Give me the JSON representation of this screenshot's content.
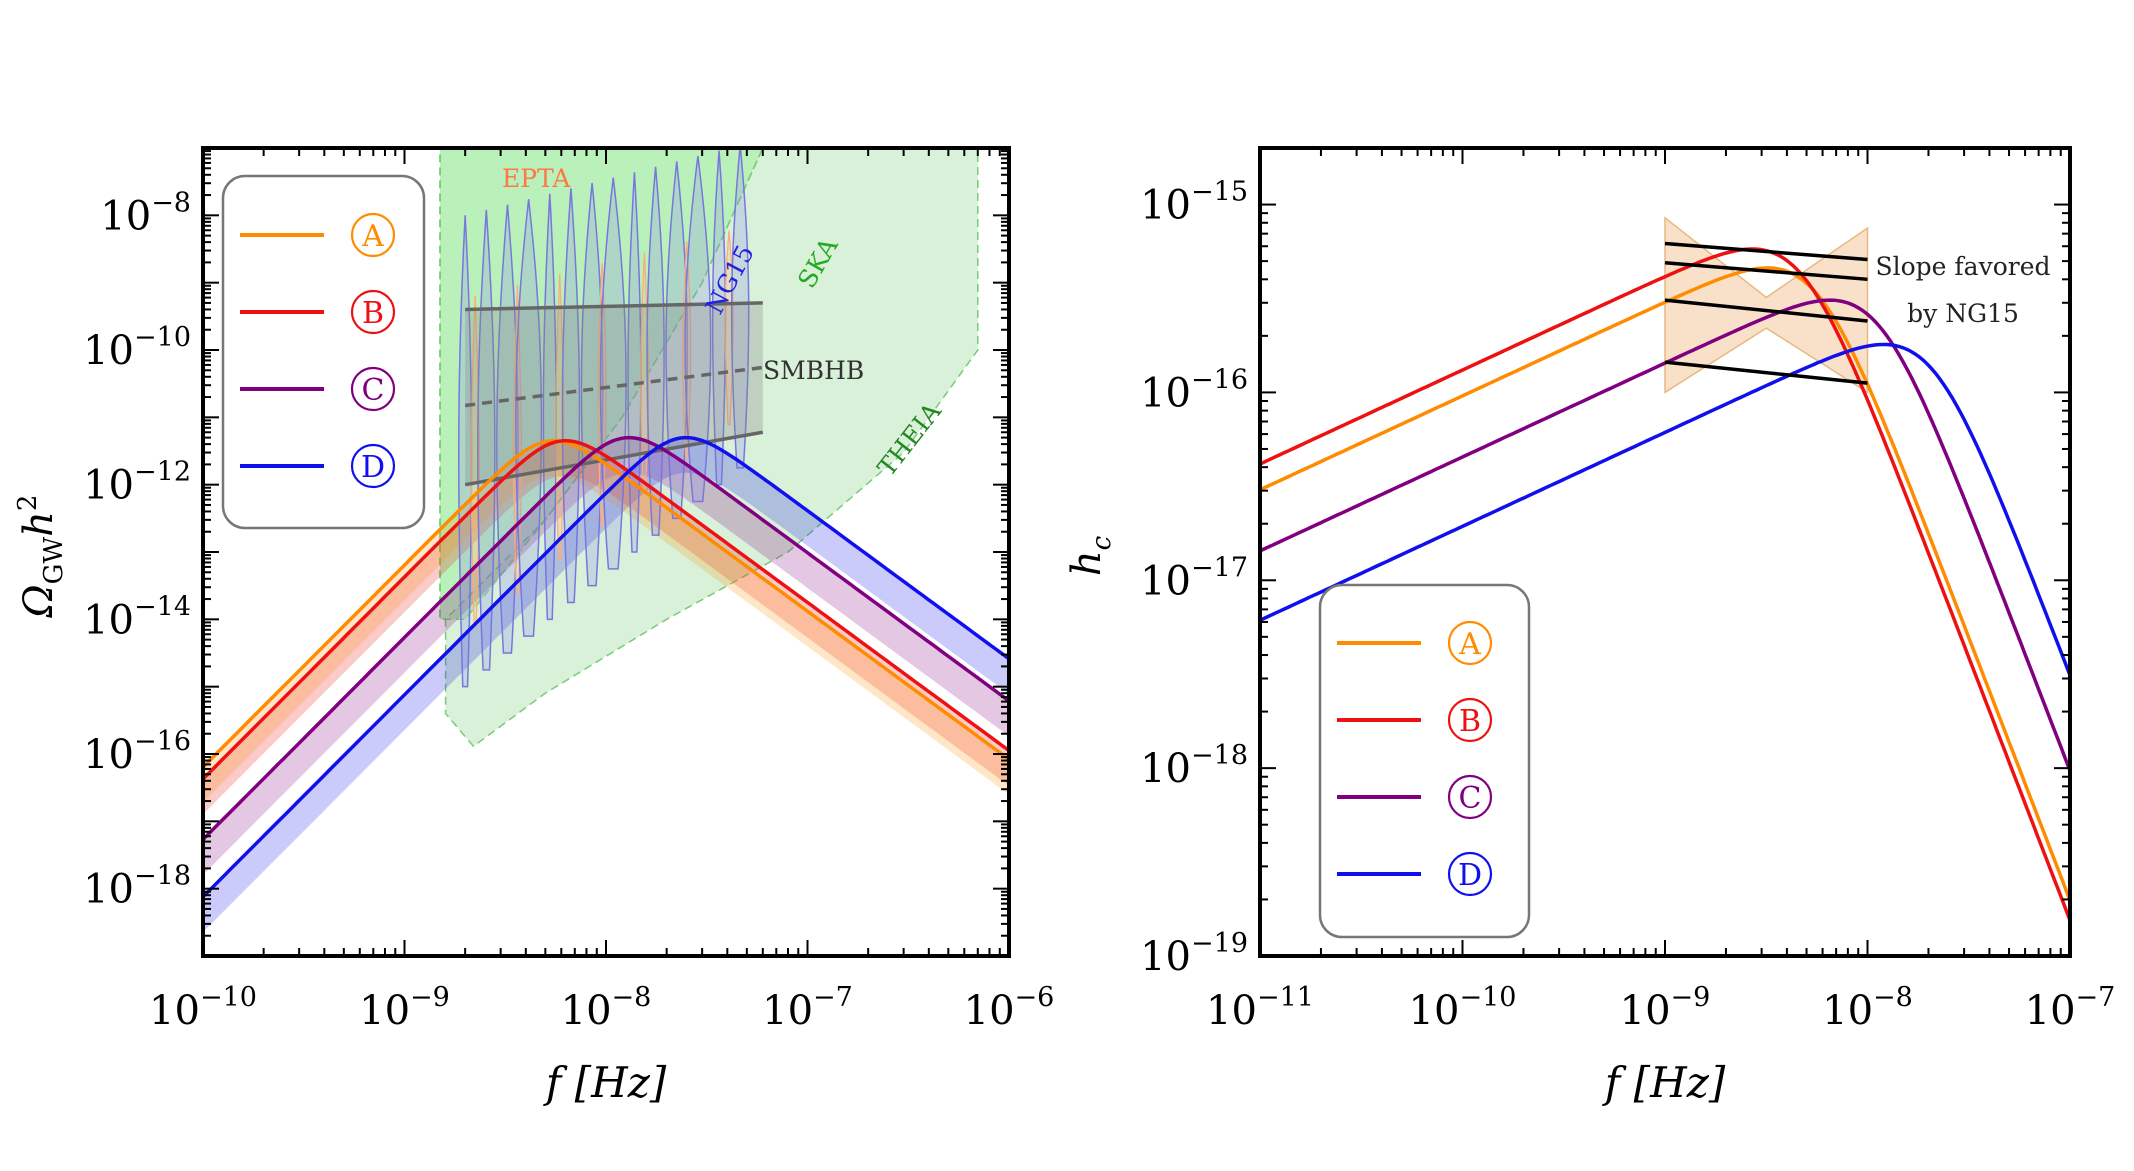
{
  "figure": {
    "panels": 2
  },
  "chart_data": [
    {
      "type": "line",
      "title": "",
      "xlabel": "f  [Hz]",
      "ylabel": "Ω_GW h²",
      "ylabel_parts": {
        "omega": "Ω",
        "sub": "GW",
        "h": "h",
        "sup": "2"
      },
      "xscale": "log",
      "yscale": "log",
      "xlim": [
        1e-10,
        1e-06
      ],
      "ylim": [
        1e-19,
        1e-07
      ],
      "grid": false,
      "x_ticks": [
        {
          "value": 1e-10,
          "base": "10",
          "exp": "−10"
        },
        {
          "value": 1e-09,
          "base": "10",
          "exp": "−9"
        },
        {
          "value": 1e-08,
          "base": "10",
          "exp": "−8"
        },
        {
          "value": 1e-07,
          "base": "10",
          "exp": "−7"
        },
        {
          "value": 1e-06,
          "base": "10",
          "exp": "−6"
        }
      ],
      "y_ticks": [
        {
          "value": 1e-18,
          "base": "10",
          "exp": "−18"
        },
        {
          "value": 1e-16,
          "base": "10",
          "exp": "−16"
        },
        {
          "value": 1e-14,
          "base": "10",
          "exp": "−14"
        },
        {
          "value": 1e-12,
          "base": "10",
          "exp": "−12"
        },
        {
          "value": 1e-10,
          "base": "10",
          "exp": "−10"
        },
        {
          "value": 1e-08,
          "base": "10",
          "exp": "−8"
        }
      ],
      "legend": {
        "placement": "top-left",
        "entries": [
          {
            "label": "A",
            "color": "#ff8c00"
          },
          {
            "label": "B",
            "color": "#ee1111"
          },
          {
            "label": "C",
            "color": "#800080"
          },
          {
            "label": "D",
            "color": "#1010ee"
          }
        ]
      },
      "series": [
        {
          "name": "A",
          "color": "#ff8c00",
          "peak_f": 5.5e-09,
          "peak_y": 4.5e-12,
          "low_slope": 3,
          "high_slope": -2.2,
          "band_low_factor": 0.3,
          "band_high_factor": 1.0
        },
        {
          "name": "B",
          "color": "#ee1111",
          "peak_f": 6.3e-09,
          "peak_y": 4.5e-12,
          "low_slope": 3,
          "high_slope": -2.2,
          "band_low_factor": 0.3,
          "band_high_factor": 1.0
        },
        {
          "name": "C",
          "color": "#800080",
          "peak_f": 1.3e-08,
          "peak_y": 5e-12,
          "low_slope": 3,
          "high_slope": -2.2,
          "band_low_factor": 0.3,
          "band_high_factor": 1.0
        },
        {
          "name": "D",
          "color": "#1010ee",
          "peak_f": 2.5e-08,
          "peak_y": 5e-12,
          "low_slope": 3,
          "high_slope": -2.2,
          "band_low_factor": 0.3,
          "band_high_factor": 1.0
        }
      ],
      "sensitivity_regions": [
        {
          "label": "SKA",
          "color": "#22aa22",
          "fill": "#66dd66"
        },
        {
          "label": "THEIA",
          "color": "#228822",
          "fill": "#aaddaa"
        }
      ],
      "pta_labels": [
        {
          "label": "EPTA",
          "color": "#ff7744"
        },
        {
          "label": "NG15",
          "color": "#2222dd"
        }
      ],
      "smbhb": {
        "label": "SMBHB",
        "f_range": [
          2e-09,
          6e-08
        ],
        "upper": [
          4e-10,
          5e-10
        ],
        "median": [
          1.5e-11,
          5.5e-11
        ],
        "lower": [
          1e-12,
          6e-12
        ]
      }
    },
    {
      "type": "line",
      "title": "",
      "xlabel": "f  [Hz]",
      "ylabel": "h_c",
      "ylabel_parts": {
        "h": "h",
        "sub": "c"
      },
      "xscale": "log",
      "yscale": "log",
      "xlim": [
        1e-11,
        1e-07
      ],
      "ylim": [
        1e-19,
        2e-15
      ],
      "grid": false,
      "x_ticks": [
        {
          "value": 1e-11,
          "base": "10",
          "exp": "−11"
        },
        {
          "value": 1e-10,
          "base": "10",
          "exp": "−10"
        },
        {
          "value": 1e-09,
          "base": "10",
          "exp": "−9"
        },
        {
          "value": 1e-08,
          "base": "10",
          "exp": "−8"
        },
        {
          "value": 1e-07,
          "base": "10",
          "exp": "−7"
        }
      ],
      "y_ticks": [
        {
          "value": 1e-19,
          "base": "10",
          "exp": "−19"
        },
        {
          "value": 1e-18,
          "base": "10",
          "exp": "−18"
        },
        {
          "value": 1e-17,
          "base": "10",
          "exp": "−17"
        },
        {
          "value": 1e-16,
          "base": "10",
          "exp": "−16"
        },
        {
          "value": 1e-15,
          "base": "10",
          "exp": "−15"
        }
      ],
      "legend": {
        "placement": "bottom-left",
        "entries": [
          {
            "label": "A",
            "color": "#ff8c00"
          },
          {
            "label": "B",
            "color": "#ee1111"
          },
          {
            "label": "C",
            "color": "#800080"
          },
          {
            "label": "D",
            "color": "#1010ee"
          }
        ]
      },
      "series": [
        {
          "name": "A",
          "color": "#ff8c00",
          "peak_f": 3.2e-09,
          "peak_y": 4.6e-16,
          "low_slope": 0.5,
          "high_slope": -2.8
        },
        {
          "name": "B",
          "color": "#ee1111",
          "peak_f": 2.7e-09,
          "peak_y": 5.8e-16,
          "low_slope": 0.5,
          "high_slope": -2.8
        },
        {
          "name": "C",
          "color": "#800080",
          "peak_f": 6.5e-09,
          "peak_y": 3.1e-16,
          "low_slope": 0.5,
          "high_slope": -2.8
        },
        {
          "name": "D",
          "color": "#1010ee",
          "peak_f": 1.2e-08,
          "peak_y": 1.8e-16,
          "low_slope": 0.5,
          "high_slope": -2.8
        }
      ],
      "slope_band": {
        "f_range": [
          1e-09,
          1e-08
        ],
        "lines": [
          [
            6.2e-16,
            5.1e-16
          ],
          [
            4.9e-16,
            4e-16
          ],
          [
            3.1e-16,
            2.4e-16
          ],
          [
            1.45e-16,
            1.12e-16
          ]
        ],
        "band_left": [
          1e-16,
          8.5e-16
        ],
        "band_mid": [
          2.2e-16,
          3.2e-16
        ],
        "band_right": [
          1e-16,
          7.5e-16
        ]
      },
      "annotation": {
        "line1": "Slope favored",
        "line2": "by NG15"
      }
    }
  ]
}
